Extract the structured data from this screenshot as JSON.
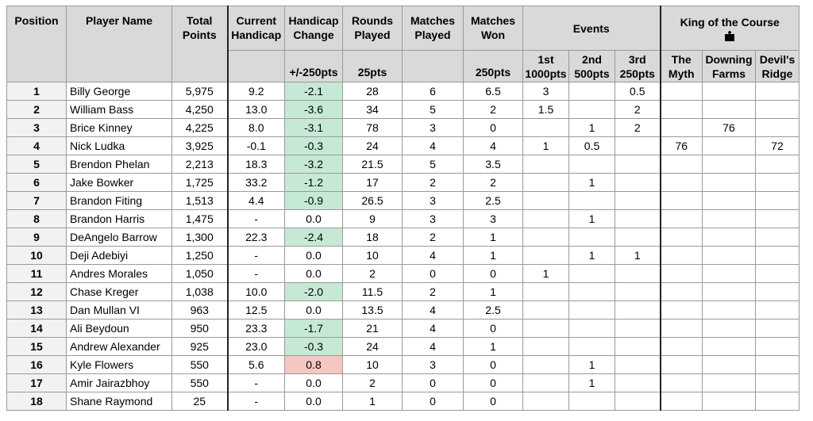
{
  "headers": {
    "position": "Position",
    "player_name": "Player Name",
    "total_points": "Total Points",
    "current_handicap": "Current Handicap",
    "handicap_change": "Handicap Change",
    "handicap_change_sub": "+/-250pts",
    "rounds_played": "Rounds Played",
    "rounds_played_sub": "25pts",
    "matches_played": "Matches Played",
    "matches_won": "Matches Won",
    "matches_won_sub": "250pts",
    "events": "Events",
    "events_1st": "1st 1000pts",
    "events_2nd": "2nd 500pts",
    "events_3rd": "3rd 250pts",
    "king": "King of the Course",
    "king_icon": "crown-icon",
    "king_myth": "The Myth",
    "king_downing": "Downing Farms",
    "king_devils": "Devil's Ridge"
  },
  "colors": {
    "header_bg": "#d9d9d9",
    "improve_bg": "#c6e9d5",
    "worse_bg": "#f4c7c3",
    "position_bg": "#f2f2f2"
  },
  "rows": [
    {
      "position": "1",
      "name": "Billy George",
      "total": "5,975",
      "handicap": "9.2",
      "change": "-2.1",
      "change_status": "improve",
      "rounds": "28",
      "mp": "6",
      "mw": "6.5",
      "e1": "3",
      "e2": "",
      "e3": "0.5",
      "myth": "",
      "downing": "",
      "devils": ""
    },
    {
      "position": "2",
      "name": "William Bass",
      "total": "4,250",
      "handicap": "13.0",
      "change": "-3.6",
      "change_status": "improve",
      "rounds": "34",
      "mp": "5",
      "mw": "2",
      "e1": "1.5",
      "e2": "",
      "e3": "2",
      "myth": "",
      "downing": "",
      "devils": ""
    },
    {
      "position": "3",
      "name": "Brice Kinney",
      "total": "4,225",
      "handicap": "8.0",
      "change": "-3.1",
      "change_status": "improve",
      "rounds": "78",
      "mp": "3",
      "mw": "0",
      "e1": "",
      "e2": "1",
      "e3": "2",
      "myth": "",
      "downing": "76",
      "devils": ""
    },
    {
      "position": "4",
      "name": "Nick Ludka",
      "total": "3,925",
      "handicap": "-0.1",
      "change": "-0.3",
      "change_status": "improve",
      "rounds": "24",
      "mp": "4",
      "mw": "4",
      "e1": "1",
      "e2": "0.5",
      "e3": "",
      "myth": "76",
      "downing": "",
      "devils": "72"
    },
    {
      "position": "5",
      "name": "Brendon Phelan",
      "total": "2,213",
      "handicap": "18.3",
      "change": "-3.2",
      "change_status": "improve",
      "rounds": "21.5",
      "mp": "5",
      "mw": "3.5",
      "e1": "",
      "e2": "",
      "e3": "",
      "myth": "",
      "downing": "",
      "devils": ""
    },
    {
      "position": "6",
      "name": "Jake Bowker",
      "total": "1,725",
      "handicap": "33.2",
      "change": "-1.2",
      "change_status": "improve",
      "rounds": "17",
      "mp": "2",
      "mw": "2",
      "e1": "",
      "e2": "1",
      "e3": "",
      "myth": "",
      "downing": "",
      "devils": ""
    },
    {
      "position": "7",
      "name": "Brandon Fiting",
      "total": "1,513",
      "handicap": "4.4",
      "change": "-0.9",
      "change_status": "improve",
      "rounds": "26.5",
      "mp": "3",
      "mw": "2.5",
      "e1": "",
      "e2": "",
      "e3": "",
      "myth": "",
      "downing": "",
      "devils": ""
    },
    {
      "position": "8",
      "name": "Brandon Harris",
      "total": "1,475",
      "handicap": "-",
      "change": "0.0",
      "change_status": "none",
      "rounds": "9",
      "mp": "3",
      "mw": "3",
      "e1": "",
      "e2": "1",
      "e3": "",
      "myth": "",
      "downing": "",
      "devils": ""
    },
    {
      "position": "9",
      "name": "DeAngelo Barrow",
      "total": "1,300",
      "handicap": "22.3",
      "change": "-2.4",
      "change_status": "improve",
      "rounds": "18",
      "mp": "2",
      "mw": "1",
      "e1": "",
      "e2": "",
      "e3": "",
      "myth": "",
      "downing": "",
      "devils": ""
    },
    {
      "position": "10",
      "name": "Deji Adebiyi",
      "total": "1,250",
      "handicap": "-",
      "change": "0.0",
      "change_status": "none",
      "rounds": "10",
      "mp": "4",
      "mw": "1",
      "e1": "",
      "e2": "1",
      "e3": "1",
      "myth": "",
      "downing": "",
      "devils": ""
    },
    {
      "position": "11",
      "name": "Andres Morales",
      "total": "1,050",
      "handicap": "-",
      "change": "0.0",
      "change_status": "none",
      "rounds": "2",
      "mp": "0",
      "mw": "0",
      "e1": "1",
      "e2": "",
      "e3": "",
      "myth": "",
      "downing": "",
      "devils": ""
    },
    {
      "position": "12",
      "name": "Chase Kreger",
      "total": "1,038",
      "handicap": "10.0",
      "change": "-2.0",
      "change_status": "improve",
      "rounds": "11.5",
      "mp": "2",
      "mw": "1",
      "e1": "",
      "e2": "",
      "e3": "",
      "myth": "",
      "downing": "",
      "devils": ""
    },
    {
      "position": "13",
      "name": "Dan Mullan VI",
      "total": "963",
      "handicap": "12.5",
      "change": "0.0",
      "change_status": "none",
      "rounds": "13.5",
      "mp": "4",
      "mw": "2.5",
      "e1": "",
      "e2": "",
      "e3": "",
      "myth": "",
      "downing": "",
      "devils": ""
    },
    {
      "position": "14",
      "name": "Ali Beydoun",
      "total": "950",
      "handicap": "23.3",
      "change": "-1.7",
      "change_status": "improve",
      "rounds": "21",
      "mp": "4",
      "mw": "0",
      "e1": "",
      "e2": "",
      "e3": "",
      "myth": "",
      "downing": "",
      "devils": ""
    },
    {
      "position": "15",
      "name": "Andrew Alexander",
      "total": "925",
      "handicap": "23.0",
      "change": "-0.3",
      "change_status": "improve",
      "rounds": "24",
      "mp": "4",
      "mw": "1",
      "e1": "",
      "e2": "",
      "e3": "",
      "myth": "",
      "downing": "",
      "devils": ""
    },
    {
      "position": "16",
      "name": "Kyle Flowers",
      "total": "550",
      "handicap": "5.6",
      "change": "0.8",
      "change_status": "worse",
      "rounds": "10",
      "mp": "3",
      "mw": "0",
      "e1": "",
      "e2": "1",
      "e3": "",
      "myth": "",
      "downing": "",
      "devils": ""
    },
    {
      "position": "17",
      "name": "Amir Jairazbhoy",
      "total": "550",
      "handicap": "-",
      "change": "0.0",
      "change_status": "none",
      "rounds": "2",
      "mp": "0",
      "mw": "0",
      "e1": "",
      "e2": "1",
      "e3": "",
      "myth": "",
      "downing": "",
      "devils": ""
    },
    {
      "position": "18",
      "name": "Shane Raymond",
      "total": "25",
      "handicap": "-",
      "change": "0.0",
      "change_status": "none",
      "rounds": "1",
      "mp": "0",
      "mw": "0",
      "e1": "",
      "e2": "",
      "e3": "",
      "myth": "",
      "downing": "",
      "devils": ""
    }
  ]
}
